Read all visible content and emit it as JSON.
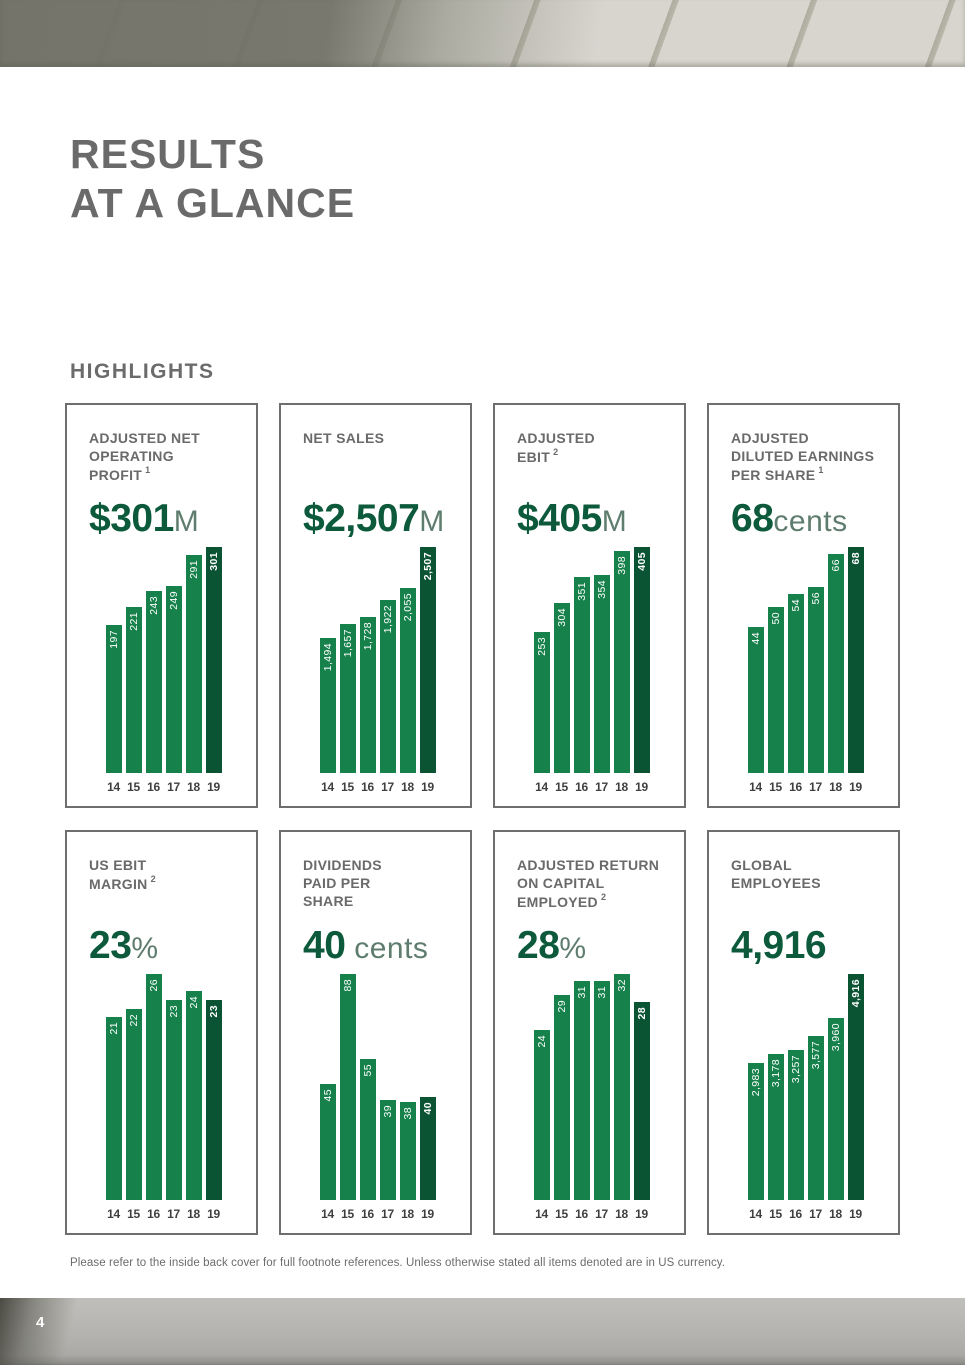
{
  "page": {
    "title": "RESULTS\nAT A GLANCE",
    "section_heading": "HIGHLIGHTS",
    "footnote": "Please refer to the inside back cover for full footnote references. Unless otherwise stated all items denoted are in US currency.",
    "page_number": "4"
  },
  "colors": {
    "bar_green": "#17814B",
    "bar_dark_green": "#0A5434",
    "headline_green": "#0C5A3B",
    "headline_suffix_green": "#5F7D6E",
    "heading_gray": "#6A6A6A",
    "card_border_gray": "#6E6E6E"
  },
  "cards": [
    {
      "title": "ADJUSTED NET\nOPERATING\nPROFIT",
      "ref": "1",
      "headline_value": "$301",
      "headline_suffix": "M"
    },
    {
      "title": "NET SALES",
      "ref": "",
      "headline_value": "$2,507",
      "headline_suffix": "M"
    },
    {
      "title": "ADJUSTED\nEBIT",
      "ref": "2",
      "headline_value": "$405",
      "headline_suffix": "M"
    },
    {
      "title": "ADJUSTED\nDILUTED EARNINGS\nPER SHARE",
      "ref": "1",
      "headline_value": "68",
      "headline_suffix": "cents"
    },
    {
      "title": "US EBIT\nMARGIN",
      "ref": "2",
      "headline_value": "23",
      "headline_suffix": "%"
    },
    {
      "title": "DIVIDENDS\nPAID PER\nSHARE",
      "ref": "",
      "headline_value": "40",
      "headline_suffix": " cents"
    },
    {
      "title": "ADJUSTED RETURN\nON CAPITAL\nEMPLOYED",
      "ref": "2",
      "headline_value": "28",
      "headline_suffix": "%"
    },
    {
      "title": "GLOBAL\nEMPLOYEES",
      "ref": "",
      "headline_value": "4,916",
      "headline_suffix": ""
    }
  ],
  "chart_data": [
    {
      "type": "bar",
      "title": "Adjusted net operating profit ($M)",
      "categories": [
        "14",
        "15",
        "16",
        "17",
        "18",
        "19"
      ],
      "values": [
        197,
        221,
        243,
        249,
        291,
        301
      ],
      "bar_labels": [
        "197",
        "221",
        "243",
        "249",
        "291",
        "301"
      ],
      "highlight_last": true,
      "ylim": [
        0,
        301
      ]
    },
    {
      "type": "bar",
      "title": "Net sales ($M)",
      "categories": [
        "14",
        "15",
        "16",
        "17",
        "18",
        "19"
      ],
      "values": [
        1494,
        1657,
        1728,
        1922,
        2055,
        2507
      ],
      "bar_labels": [
        "1,494",
        "1,657",
        "1,728",
        "1,922",
        "2,055",
        "2,507"
      ],
      "highlight_last": true,
      "ylim": [
        0,
        2507
      ]
    },
    {
      "type": "bar",
      "title": "Adjusted EBIT ($M)",
      "categories": [
        "14",
        "15",
        "16",
        "17",
        "18",
        "19"
      ],
      "values": [
        253,
        304,
        351,
        354,
        398,
        405
      ],
      "bar_labels": [
        "253",
        "304",
        "351",
        "354",
        "398",
        "405"
      ],
      "highlight_last": true,
      "ylim": [
        0,
        405
      ]
    },
    {
      "type": "bar",
      "title": "Adjusted diluted earnings per share (cents)",
      "categories": [
        "14",
        "15",
        "16",
        "17",
        "18",
        "19"
      ],
      "values": [
        44,
        50,
        54,
        56,
        66,
        68
      ],
      "bar_labels": [
        "44",
        "50",
        "54",
        "56",
        "66",
        "68"
      ],
      "highlight_last": true,
      "ylim": [
        0,
        68
      ]
    },
    {
      "type": "bar",
      "title": "US EBIT margin (%)",
      "categories": [
        "14",
        "15",
        "16",
        "17",
        "18",
        "19"
      ],
      "values": [
        21,
        22,
        26,
        23,
        24,
        23
      ],
      "bar_labels": [
        "21",
        "22",
        "26",
        "23",
        "24",
        "23"
      ],
      "highlight_last": true,
      "ylim": [
        0,
        26
      ]
    },
    {
      "type": "bar",
      "title": "Dividends paid per share (cents)",
      "categories": [
        "14",
        "15",
        "16",
        "17",
        "18",
        "19"
      ],
      "values": [
        45,
        88,
        55,
        39,
        38,
        40
      ],
      "bar_labels": [
        "45",
        "88",
        "55",
        "39",
        "38",
        "40"
      ],
      "highlight_last": true,
      "ylim": [
        0,
        88
      ]
    },
    {
      "type": "bar",
      "title": "Adjusted return on capital employed (%)",
      "categories": [
        "14",
        "15",
        "16",
        "17",
        "18",
        "19"
      ],
      "values": [
        24,
        29,
        31,
        31,
        32,
        28
      ],
      "bar_labels": [
        "24",
        "29",
        "31",
        "31",
        "32",
        "28"
      ],
      "highlight_last": true,
      "ylim": [
        0,
        32
      ]
    },
    {
      "type": "bar",
      "title": "Global employees",
      "categories": [
        "14",
        "15",
        "16",
        "17",
        "18",
        "19"
      ],
      "values": [
        2983,
        3178,
        3257,
        3577,
        3960,
        4916
      ],
      "bar_labels": [
        "2,983",
        "3,178",
        "3,257",
        "3,577",
        "3,960",
        "4,916"
      ],
      "highlight_last": true,
      "ylim": [
        0,
        4916
      ]
    }
  ]
}
